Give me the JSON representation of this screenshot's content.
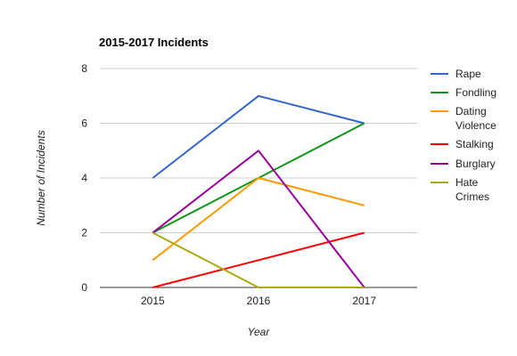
{
  "chart_data": {
    "type": "line",
    "title": "2015-2017 Incidents",
    "xlabel": "Year",
    "ylabel": "Number of Incidents",
    "x": [
      "2015",
      "2016",
      "2017"
    ],
    "ylim": [
      0,
      8
    ],
    "yticks": [
      0,
      2,
      4,
      6,
      8
    ],
    "grid": true,
    "legend_position": "right",
    "series": [
      {
        "name": "Rape",
        "legend_lines": [
          "Rape"
        ],
        "color": "#3366cc",
        "values": [
          4,
          7,
          6
        ]
      },
      {
        "name": "Fondling",
        "legend_lines": [
          "Fondling"
        ],
        "color": "#109618",
        "values": [
          2,
          4,
          6
        ]
      },
      {
        "name": "Dating Violence",
        "legend_lines": [
          "Dating",
          "Violence"
        ],
        "color": "#ff9900",
        "values": [
          1,
          4,
          3
        ]
      },
      {
        "name": "Stalking",
        "legend_lines": [
          "Stalking"
        ],
        "color": "#ff0000",
        "values": [
          0,
          1,
          2
        ]
      },
      {
        "name": "Burglary",
        "legend_lines": [
          "Burglary"
        ],
        "color": "#990099",
        "values": [
          2,
          5,
          0
        ]
      },
      {
        "name": "Hate Crimes",
        "legend_lines": [
          "Hate",
          "Crimes"
        ],
        "color": "#aaaa11",
        "values": [
          2,
          0,
          0
        ]
      }
    ]
  }
}
